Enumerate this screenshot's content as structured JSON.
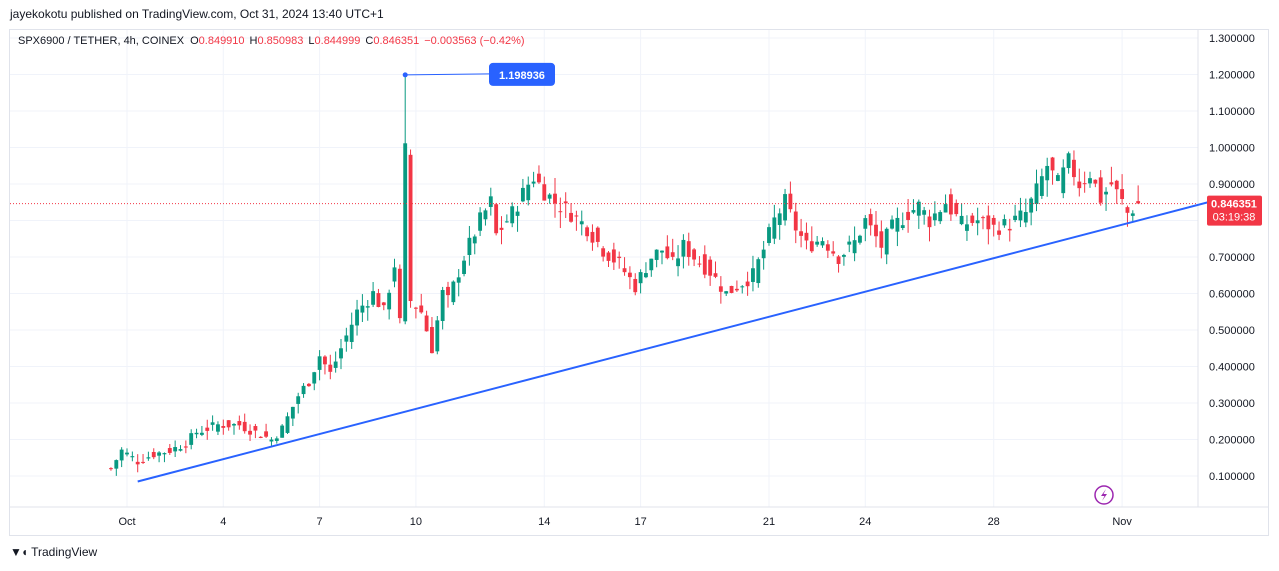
{
  "header": {
    "publisher_text": "jayekokotu published on TradingView.com, Oct 31, 2024 13:40 UTC+1"
  },
  "legend": {
    "symbol": "SPX6900 / TETHER, 4h, COINEX",
    "o_label": "O",
    "o_value": "0.849910",
    "h_label": "H",
    "h_value": "0.850983",
    "l_label": "L",
    "l_value": "0.844999",
    "c_label": "C",
    "c_value": "0.846351",
    "change": "−0.003563 (−0.42%)"
  },
  "footer": {
    "brand": "TradingView",
    "logo_icon": "tradingview-logo-icon"
  },
  "colors": {
    "up": "#089981",
    "down": "#f23645",
    "trendline": "#2962ff",
    "callout": "#2962ff",
    "price_tag": "#f23645",
    "lightning": "#9c27b0"
  },
  "chart_data": {
    "type": "candlestick",
    "title": "",
    "xlabel": "",
    "ylabel": "",
    "ylim": [
      0.0,
      1.3
    ],
    "grid": true,
    "yticks": [
      "1.300000",
      "1.200000",
      "1.100000",
      "1.000000",
      "0.900000",
      "0.800000",
      "0.700000",
      "0.600000",
      "0.500000",
      "0.400000",
      "0.300000",
      "0.200000",
      "0.100000"
    ],
    "xticks": [
      {
        "label": "Oct",
        "day": 1
      },
      {
        "label": "4",
        "day": 4
      },
      {
        "label": "7",
        "day": 7
      },
      {
        "label": "10",
        "day": 10
      },
      {
        "label": "14",
        "day": 14
      },
      {
        "label": "17",
        "day": 17
      },
      {
        "label": "21",
        "day": 21
      },
      {
        "label": "24",
        "day": 24
      },
      {
        "label": "28",
        "day": 28
      },
      {
        "label": "Nov",
        "day": 32
      }
    ],
    "first_day": 0.5,
    "bars_per_day": 6,
    "anchors": [
      [
        0.12,
        0
      ],
      [
        0.17,
        2
      ],
      [
        0.14,
        5
      ],
      [
        0.16,
        8
      ],
      [
        0.17,
        11
      ],
      [
        0.19,
        14
      ],
      [
        0.22,
        16
      ],
      [
        0.23,
        18
      ],
      [
        0.24,
        20
      ],
      [
        0.24,
        24
      ],
      [
        0.22,
        27
      ],
      [
        0.2,
        30
      ],
      [
        0.23,
        32
      ],
      [
        0.32,
        35
      ],
      [
        0.36,
        37
      ],
      [
        0.43,
        39
      ],
      [
        0.38,
        41
      ],
      [
        0.45,
        43
      ],
      [
        0.55,
        46
      ],
      [
        0.6,
        49
      ],
      [
        0.55,
        51
      ],
      [
        0.68,
        53
      ],
      [
        0.52,
        54
      ],
      [
        0.99,
        55
      ],
      [
        0.58,
        56
      ],
      [
        0.55,
        58
      ],
      [
        0.45,
        60
      ],
      [
        0.6,
        62
      ],
      [
        0.58,
        63
      ],
      [
        0.7,
        66
      ],
      [
        0.8,
        69
      ],
      [
        0.85,
        71
      ],
      [
        0.76,
        72
      ],
      [
        0.82,
        75
      ],
      [
        0.9,
        78
      ],
      [
        0.92,
        79
      ],
      [
        0.88,
        81
      ],
      [
        0.85,
        83
      ],
      [
        0.82,
        86
      ],
      [
        0.78,
        89
      ],
      [
        0.72,
        92
      ],
      [
        0.68,
        95
      ],
      [
        0.62,
        98
      ],
      [
        0.7,
        101
      ],
      [
        0.72,
        103
      ],
      [
        0.68,
        105
      ],
      [
        0.73,
        107
      ],
      [
        0.7,
        109
      ],
      [
        0.66,
        112
      ],
      [
        0.6,
        115
      ],
      [
        0.62,
        117
      ],
      [
        0.65,
        120
      ],
      [
        0.72,
        122
      ],
      [
        0.8,
        124
      ],
      [
        0.85,
        126
      ],
      [
        0.78,
        128
      ],
      [
        0.73,
        130
      ],
      [
        0.75,
        133
      ],
      [
        0.7,
        136
      ],
      [
        0.74,
        139
      ],
      [
        0.8,
        141
      ],
      [
        0.73,
        144
      ],
      [
        0.78,
        146
      ],
      [
        0.82,
        149
      ],
      [
        0.84,
        151
      ],
      [
        0.8,
        153
      ],
      [
        0.85,
        156
      ],
      [
        0.79,
        159
      ],
      [
        0.8,
        162
      ],
      [
        0.78,
        165
      ],
      [
        0.79,
        168
      ],
      [
        0.82,
        171
      ],
      [
        0.88,
        173
      ],
      [
        0.95,
        175
      ],
      [
        0.9,
        177
      ],
      [
        0.96,
        179
      ],
      [
        0.9,
        181
      ],
      [
        0.93,
        183
      ],
      [
        0.86,
        185
      ],
      [
        0.9,
        187
      ],
      [
        0.85,
        189
      ],
      [
        0.82,
        190
      ],
      [
        0.846,
        192
      ]
    ],
    "spikes": [
      {
        "bar": 55,
        "high": 1.198936
      }
    ],
    "trendline": {
      "start": {
        "bar": 5,
        "value": 0.085
      },
      "end": {
        "bar": 209,
        "value": 0.865
      }
    },
    "high_marker": {
      "bar": 55,
      "value": 1.198936,
      "label": "1.198936"
    },
    "last_price": {
      "value": 0.846351,
      "label": "0.846351",
      "countdown": "03:19:38"
    }
  }
}
